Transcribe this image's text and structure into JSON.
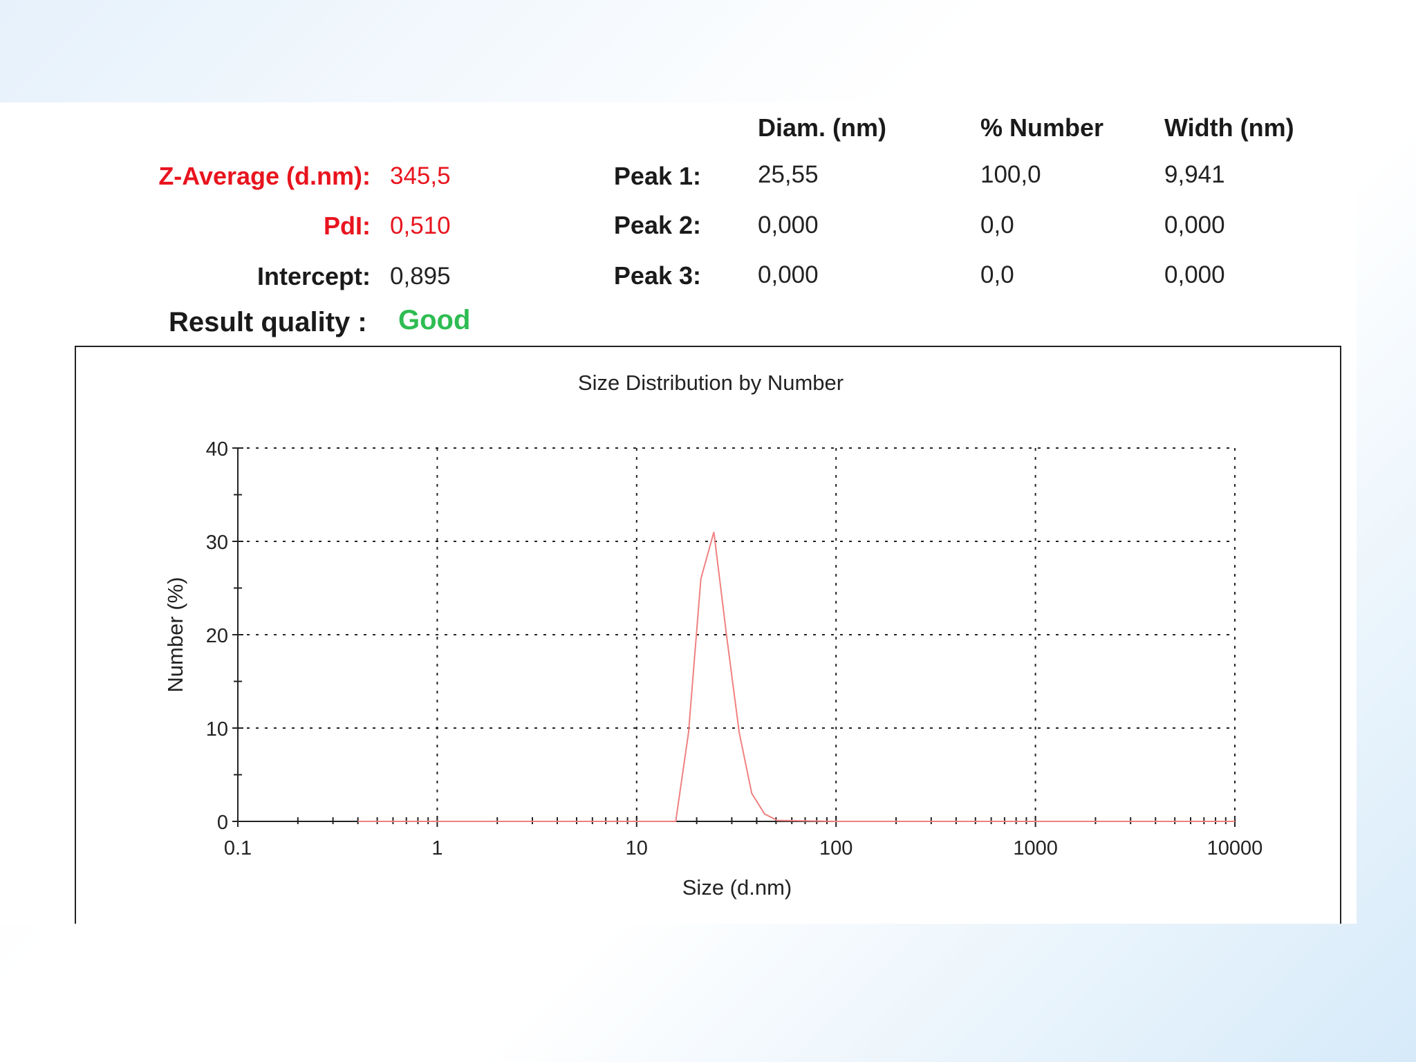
{
  "summary": {
    "z_average_label": "Z-Average (d.nm):",
    "z_average_value": "345,5",
    "pdi_label": "PdI:",
    "pdi_value": "0,510",
    "intercept_label": "Intercept:",
    "intercept_value": "0,895",
    "quality_label": "Result quality :",
    "quality_value": "Good"
  },
  "peaks": {
    "headers": [
      "Diam. (nm)",
      "% Number",
      "Width (nm)"
    ],
    "rows": [
      {
        "label": "Peak 1:",
        "diam": "25,55",
        "number": "100,0",
        "width": "9,941"
      },
      {
        "label": "Peak 2:",
        "diam": "0,000",
        "number": "0,0",
        "width": "0,000"
      },
      {
        "label": "Peak 3:",
        "diam": "0,000",
        "number": "0,0",
        "width": "0,000"
      }
    ]
  },
  "colors": {
    "red_text": "#e8141e",
    "good": "#2ebc52",
    "series": "#f08080"
  },
  "chart_data": {
    "type": "line",
    "title": "Size Distribution by Number",
    "xlabel": "Size (d.nm)",
    "ylabel": "Number (%)",
    "x_scale": "log",
    "xlim": [
      0.1,
      10000
    ],
    "ylim": [
      0,
      40
    ],
    "x_ticks": [
      0.1,
      1,
      10,
      100,
      1000,
      10000
    ],
    "x_tick_labels": [
      "0.1",
      "1",
      "10",
      "100",
      "1000",
      "10000"
    ],
    "y_ticks": [
      0,
      10,
      20,
      30,
      40
    ],
    "y_tick_labels": [
      "0",
      "10",
      "20",
      "30",
      "40"
    ],
    "grid": true,
    "series": [
      {
        "x": [
          0.4,
          1,
          10,
          15.7,
          18.2,
          21.0,
          24.4,
          28.2,
          32.7,
          37.8,
          43.8,
          50.7,
          100,
          1000,
          10000
        ],
        "y": [
          0,
          0,
          0,
          0,
          9.5,
          26.0,
          31.0,
          20.0,
          9.5,
          3.0,
          0.8,
          0.1,
          0,
          0,
          0
        ]
      }
    ]
  }
}
